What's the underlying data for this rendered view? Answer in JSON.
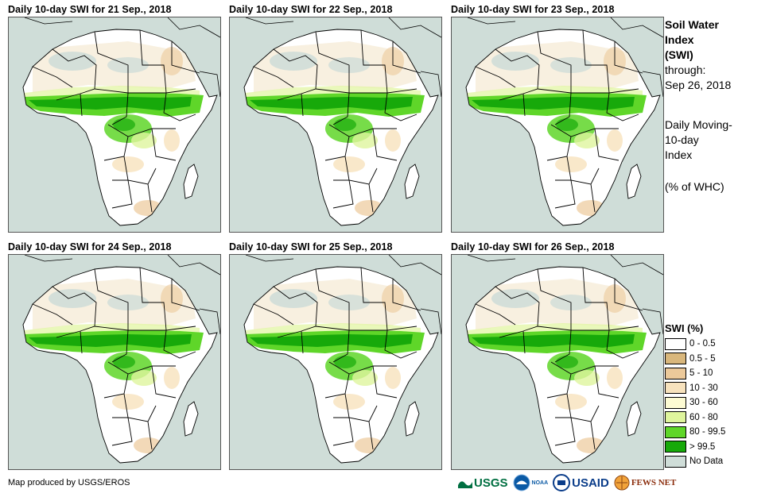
{
  "panels": [
    {
      "title": "Daily 10-day SWI for 21 Sep., 2018"
    },
    {
      "title": "Daily 10-day SWI for 22 Sep., 2018"
    },
    {
      "title": "Daily 10-day SWI for 23 Sep., 2018"
    },
    {
      "title": "Daily 10-day SWI for 24 Sep., 2018"
    },
    {
      "title": "Daily 10-day SWI for 25 Sep., 2018"
    },
    {
      "title": "Daily 10-day SWI for 26 Sep., 2018"
    }
  ],
  "sidebar": {
    "title_line1": "Soil Water",
    "title_line2": "Index",
    "title_line3": "(SWI)",
    "through_label": "through:",
    "through_date": "Sep 26, 2018",
    "desc_line1": "Daily Moving-",
    "desc_line2": "10-day",
    "desc_line3": "Index",
    "units": "(% of WHC)"
  },
  "legend": {
    "title": "SWI (%)",
    "items": [
      {
        "label": "0 - 0.5",
        "color": "#ffffff"
      },
      {
        "label": "0.5 - 5",
        "color": "#d9b77c"
      },
      {
        "label": "5 - 10",
        "color": "#ecc99a"
      },
      {
        "label": "10 - 30",
        "color": "#f7e2bd"
      },
      {
        "label": "30 - 60",
        "color": "#fdfbd3"
      },
      {
        "label": "60 - 80",
        "color": "#dff59d"
      },
      {
        "label": "80 - 99.5",
        "color": "#5fd629"
      },
      {
        "label": "> 99.5",
        "color": "#17a90a"
      },
      {
        "label": "No Data",
        "color": "#cfddd8"
      }
    ]
  },
  "credit": "Map produced by USGS/EROS",
  "logos": {
    "usgs": "USGS",
    "noaa": "NOAA",
    "usaid": "USAID",
    "fewsnet": "FEWS NET"
  }
}
